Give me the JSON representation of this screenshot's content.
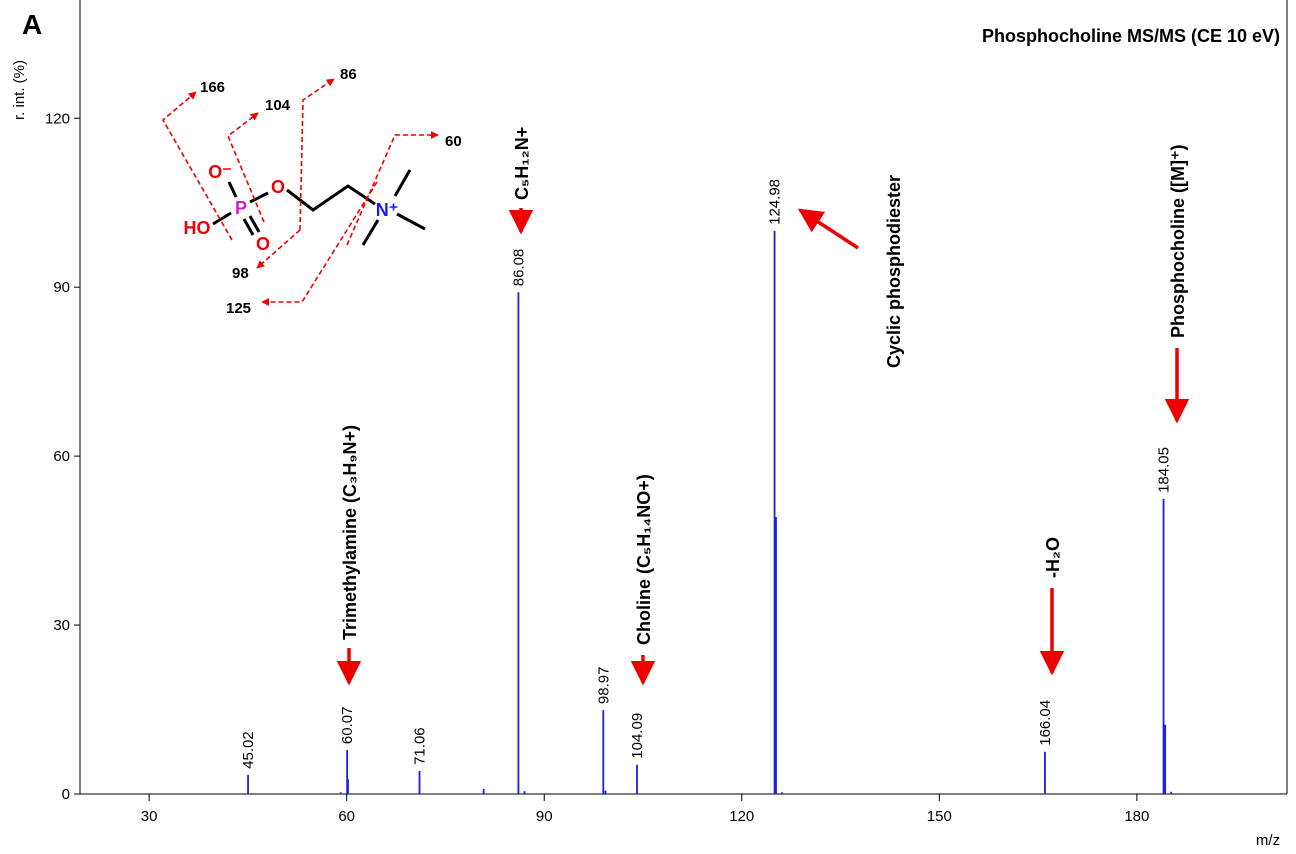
{
  "panel_label": "A",
  "chart_data": {
    "type": "spectrum",
    "title": "Phosphocholine MS/MS (CE 10 eV)",
    "x_label": "m/z",
    "y_label": "r. int. (%)",
    "xlim": [
      19.5,
      202.8
    ],
    "ylim": [
      0,
      141
    ],
    "xticks": [
      30,
      60,
      90,
      120,
      150,
      180
    ],
    "yticks": [
      0,
      30,
      60,
      90,
      120
    ],
    "color": "#1f1fd6",
    "peaks": {
      "x": [
        45.02,
        60.07,
        71.06,
        86.08,
        98.97,
        104.09,
        124.98,
        166.04,
        184.05
      ],
      "values": [
        3.4,
        7.8,
        4.1,
        89.1,
        14.9,
        5.2,
        100,
        7.5,
        52.4
      ]
    },
    "minor_peaks": {
      "x": [
        59.1,
        60.2,
        80.8,
        87.0,
        99.3,
        125.2,
        126.1,
        184.3,
        185.2
      ],
      "values": [
        0.3,
        2.6,
        0.9,
        0.5,
        0.6,
        49.2,
        0.3,
        12.3,
        0.4
      ]
    },
    "annotations": [
      "Trimethylamine (C₃H₉N+)",
      "C₅H₁₂N+",
      "Choline (C₅H₁₄NO+)",
      "Cyclic phosphodiester",
      "-H₂O",
      "Phosphocholine ([M]⁺)"
    ]
  },
  "structure": {
    "atoms": [
      "O⁻",
      "P",
      "O",
      "O",
      "HO",
      "N⁺"
    ],
    "fragments": [
      166,
      104,
      86,
      60,
      98,
      125
    ]
  }
}
